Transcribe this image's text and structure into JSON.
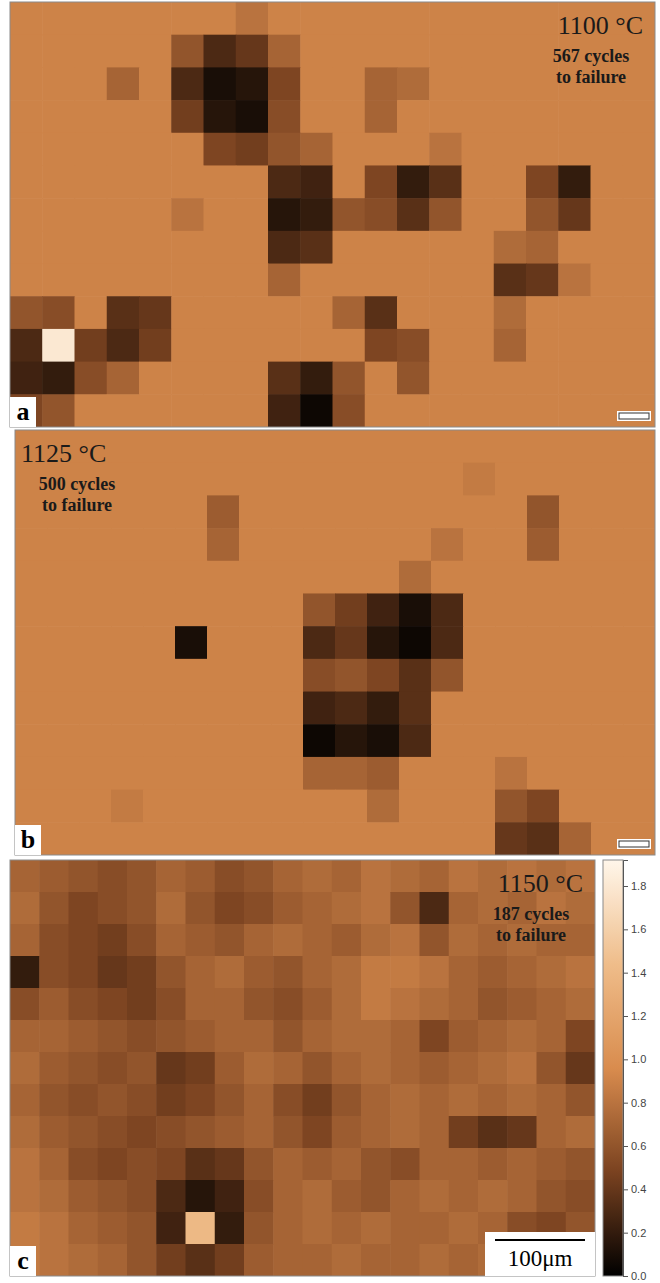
{
  "chart_data": [
    {
      "type": "heatmap",
      "panel_label": "a",
      "title": "1100 °C",
      "annotation": "567 cycles to failure",
      "cells": [
        [
          0.9,
          0.9,
          0.9,
          0.9,
          0.9,
          0.9,
          0.9,
          0.8,
          0.9,
          0.9,
          0.9,
          0.9,
          0.9,
          0.9,
          0.9,
          0.9,
          0.9,
          0.9,
          0.9,
          0.9
        ],
        [
          0.9,
          0.9,
          0.9,
          0.9,
          0.9,
          0.6,
          0.3,
          0.4,
          0.7,
          0.9,
          0.9,
          0.9,
          0.9,
          0.9,
          0.9,
          0.9,
          0.9,
          0.9,
          0.9,
          0.9
        ],
        [
          0.9,
          0.9,
          0.9,
          0.7,
          0.9,
          0.3,
          0.1,
          0.15,
          0.5,
          0.9,
          0.9,
          0.7,
          0.75,
          0.9,
          0.9,
          0.9,
          0.9,
          0.9,
          0.9,
          0.9
        ],
        [
          0.9,
          0.9,
          0.9,
          0.9,
          0.9,
          0.45,
          0.15,
          0.1,
          0.55,
          0.9,
          0.9,
          0.7,
          0.9,
          0.9,
          0.9,
          0.9,
          0.9,
          0.9,
          0.9,
          0.9
        ],
        [
          0.9,
          0.9,
          0.9,
          0.9,
          0.9,
          0.9,
          0.5,
          0.45,
          0.6,
          0.7,
          0.9,
          0.9,
          0.9,
          0.8,
          0.9,
          0.9,
          0.9,
          0.9,
          0.9,
          0.9
        ],
        [
          0.9,
          0.9,
          0.9,
          0.9,
          0.9,
          0.9,
          0.9,
          0.9,
          0.3,
          0.25,
          0.9,
          0.5,
          0.2,
          0.35,
          0.9,
          0.9,
          0.5,
          0.2,
          0.9,
          0.9
        ],
        [
          0.9,
          0.9,
          0.9,
          0.9,
          0.9,
          0.8,
          0.9,
          0.9,
          0.15,
          0.2,
          0.6,
          0.55,
          0.35,
          0.6,
          0.9,
          0.9,
          0.6,
          0.4,
          0.9,
          0.9
        ],
        [
          0.9,
          0.9,
          0.9,
          0.9,
          0.9,
          0.9,
          0.9,
          0.9,
          0.3,
          0.35,
          0.9,
          0.9,
          0.9,
          0.9,
          0.9,
          0.75,
          0.7,
          0.9,
          0.9,
          0.9
        ],
        [
          0.9,
          0.9,
          0.9,
          0.9,
          0.9,
          0.9,
          0.9,
          0.9,
          0.7,
          0.9,
          0.9,
          0.9,
          0.9,
          0.9,
          0.9,
          0.35,
          0.4,
          0.8,
          0.9,
          0.9
        ],
        [
          0.6,
          0.55,
          0.9,
          0.35,
          0.4,
          0.9,
          0.9,
          0.9,
          0.9,
          0.9,
          0.7,
          0.35,
          0.9,
          0.9,
          0.9,
          0.75,
          0.9,
          0.9,
          0.9,
          0.9
        ],
        [
          0.3,
          1.8,
          0.45,
          0.3,
          0.45,
          0.9,
          0.9,
          0.9,
          0.9,
          0.9,
          0.9,
          0.5,
          0.55,
          0.9,
          0.9,
          0.7,
          0.9,
          0.9,
          0.9,
          0.9
        ],
        [
          0.25,
          0.2,
          0.55,
          0.7,
          0.9,
          0.9,
          0.9,
          0.9,
          0.35,
          0.2,
          0.6,
          0.9,
          0.6,
          0.9,
          0.9,
          0.9,
          0.9,
          0.9,
          0.9,
          0.9
        ],
        [
          0.5,
          0.6,
          0.9,
          0.9,
          0.9,
          0.9,
          0.9,
          0.9,
          0.25,
          0.05,
          0.55,
          0.9,
          0.9,
          0.9,
          0.9,
          0.9,
          0.9,
          0.9,
          0.9,
          0.9
        ]
      ]
    },
    {
      "type": "heatmap",
      "panel_label": "b",
      "title": "1125 °C",
      "annotation": "500 cycles to failure",
      "cells": [
        [
          0.9,
          0.9,
          0.9,
          0.9,
          0.9,
          0.9,
          0.9,
          0.9,
          0.9,
          0.9,
          0.9,
          0.9,
          0.9,
          0.9,
          0.9,
          0.9,
          0.9,
          0.9,
          0.9,
          0.9
        ],
        [
          0.9,
          0.9,
          0.9,
          0.9,
          0.9,
          0.9,
          0.9,
          0.9,
          0.9,
          0.9,
          0.9,
          0.9,
          0.9,
          0.9,
          0.85,
          0.9,
          0.9,
          0.9,
          0.9,
          0.9
        ],
        [
          0.9,
          0.9,
          0.9,
          0.9,
          0.9,
          0.9,
          0.65,
          0.9,
          0.9,
          0.9,
          0.9,
          0.9,
          0.9,
          0.9,
          0.9,
          0.9,
          0.6,
          0.9,
          0.9,
          0.9
        ],
        [
          0.9,
          0.9,
          0.9,
          0.9,
          0.9,
          0.9,
          0.7,
          0.9,
          0.9,
          0.9,
          0.9,
          0.9,
          0.9,
          0.8,
          0.9,
          0.9,
          0.65,
          0.9,
          0.9,
          0.9
        ],
        [
          0.9,
          0.9,
          0.9,
          0.9,
          0.9,
          0.9,
          0.9,
          0.9,
          0.9,
          0.9,
          0.9,
          0.9,
          0.75,
          0.9,
          0.9,
          0.9,
          0.9,
          0.9,
          0.9,
          0.9
        ],
        [
          0.9,
          0.9,
          0.9,
          0.9,
          0.9,
          0.9,
          0.9,
          0.9,
          0.9,
          0.6,
          0.45,
          0.25,
          0.1,
          0.3,
          0.9,
          0.9,
          0.9,
          0.9,
          0.9,
          0.9
        ],
        [
          0.9,
          0.9,
          0.9,
          0.9,
          0.9,
          0.1,
          0.9,
          0.9,
          0.9,
          0.3,
          0.4,
          0.15,
          0.05,
          0.3,
          0.9,
          0.9,
          0.9,
          0.9,
          0.9,
          0.9
        ],
        [
          0.9,
          0.9,
          0.9,
          0.9,
          0.9,
          0.9,
          0.9,
          0.9,
          0.9,
          0.55,
          0.6,
          0.5,
          0.35,
          0.6,
          0.9,
          0.9,
          0.9,
          0.9,
          0.9,
          0.9
        ],
        [
          0.9,
          0.9,
          0.9,
          0.9,
          0.9,
          0.9,
          0.9,
          0.9,
          0.9,
          0.25,
          0.3,
          0.2,
          0.35,
          0.9,
          0.9,
          0.9,
          0.9,
          0.9,
          0.9,
          0.9
        ],
        [
          0.9,
          0.9,
          0.9,
          0.9,
          0.9,
          0.9,
          0.9,
          0.9,
          0.9,
          0.05,
          0.15,
          0.1,
          0.3,
          0.9,
          0.9,
          0.9,
          0.9,
          0.9,
          0.9,
          0.9
        ],
        [
          0.9,
          0.9,
          0.9,
          0.9,
          0.9,
          0.9,
          0.9,
          0.9,
          0.9,
          0.7,
          0.7,
          0.65,
          0.9,
          0.9,
          0.9,
          0.8,
          0.9,
          0.9,
          0.9,
          0.9
        ],
        [
          0.9,
          0.9,
          0.9,
          0.85,
          0.9,
          0.9,
          0.9,
          0.9,
          0.9,
          0.9,
          0.9,
          0.75,
          0.9,
          0.9,
          0.9,
          0.6,
          0.5,
          0.9,
          0.9,
          0.9
        ],
        [
          0.9,
          0.9,
          0.9,
          0.9,
          0.9,
          0.9,
          0.9,
          0.9,
          0.9,
          0.9,
          0.9,
          0.9,
          0.9,
          0.9,
          0.9,
          0.4,
          0.35,
          0.7,
          0.9,
          0.9
        ]
      ]
    },
    {
      "type": "heatmap",
      "panel_label": "c",
      "title": "1150 °C",
      "annotation": "187 cycles to failure",
      "scale_bar": "100μm",
      "colorbar_range": [
        0,
        1.92
      ],
      "colorbar_ticks": [
        {
          "value": 0,
          "label": "0.0"
        },
        0.2,
        0.4,
        0.6,
        0.8,
        {
          "value": 1,
          "label": "1.0"
        },
        1.2,
        1.4,
        1.6,
        1.8
      ],
      "cells": [
        [
          0.7,
          0.65,
          0.6,
          0.55,
          0.6,
          0.7,
          0.65,
          0.55,
          0.6,
          0.7,
          0.75,
          0.7,
          0.8,
          0.75,
          0.7,
          0.8,
          0.75,
          0.8,
          0.75,
          0.8
        ],
        [
          0.75,
          0.6,
          0.5,
          0.55,
          0.6,
          0.75,
          0.6,
          0.5,
          0.55,
          0.65,
          0.7,
          0.75,
          0.8,
          0.6,
          0.3,
          0.7,
          0.75,
          0.7,
          0.8,
          0.75
        ],
        [
          0.7,
          0.55,
          0.5,
          0.45,
          0.55,
          0.7,
          0.65,
          0.6,
          0.7,
          0.75,
          0.7,
          0.65,
          0.75,
          0.8,
          0.6,
          0.75,
          0.7,
          0.75,
          0.7,
          0.7
        ],
        [
          0.2,
          0.55,
          0.5,
          0.4,
          0.45,
          0.6,
          0.7,
          0.75,
          0.65,
          0.6,
          0.7,
          0.75,
          0.85,
          0.85,
          0.8,
          0.7,
          0.65,
          0.7,
          0.75,
          0.8
        ],
        [
          0.55,
          0.65,
          0.55,
          0.5,
          0.45,
          0.55,
          0.7,
          0.7,
          0.6,
          0.55,
          0.65,
          0.75,
          0.85,
          0.8,
          0.75,
          0.7,
          0.6,
          0.65,
          0.7,
          0.75
        ],
        [
          0.7,
          0.7,
          0.65,
          0.6,
          0.55,
          0.6,
          0.65,
          0.7,
          0.7,
          0.6,
          0.7,
          0.75,
          0.75,
          0.7,
          0.5,
          0.65,
          0.7,
          0.75,
          0.7,
          0.5
        ],
        [
          0.75,
          0.65,
          0.6,
          0.55,
          0.6,
          0.4,
          0.45,
          0.65,
          0.75,
          0.7,
          0.6,
          0.7,
          0.75,
          0.7,
          0.65,
          0.7,
          0.75,
          0.8,
          0.6,
          0.4
        ],
        [
          0.7,
          0.6,
          0.55,
          0.6,
          0.55,
          0.45,
          0.5,
          0.6,
          0.7,
          0.55,
          0.45,
          0.6,
          0.7,
          0.75,
          0.7,
          0.75,
          0.7,
          0.75,
          0.7,
          0.6
        ],
        [
          0.75,
          0.65,
          0.6,
          0.55,
          0.5,
          0.55,
          0.6,
          0.65,
          0.7,
          0.6,
          0.5,
          0.65,
          0.7,
          0.75,
          0.7,
          0.45,
          0.35,
          0.4,
          0.7,
          0.75
        ],
        [
          0.8,
          0.7,
          0.55,
          0.5,
          0.55,
          0.5,
          0.35,
          0.4,
          0.6,
          0.7,
          0.65,
          0.7,
          0.6,
          0.55,
          0.7,
          0.7,
          0.65,
          0.7,
          0.65,
          0.6
        ],
        [
          0.8,
          0.75,
          0.65,
          0.6,
          0.55,
          0.3,
          0.15,
          0.25,
          0.55,
          0.7,
          0.75,
          0.65,
          0.6,
          0.7,
          0.75,
          0.7,
          0.75,
          0.7,
          0.6,
          0.55
        ],
        [
          0.85,
          0.8,
          0.7,
          0.65,
          0.6,
          0.25,
          1.4,
          0.2,
          0.6,
          0.7,
          0.75,
          0.7,
          0.75,
          0.7,
          0.7,
          0.75,
          0.7,
          0.55,
          0.5,
          0.6
        ],
        [
          0.85,
          0.8,
          0.75,
          0.7,
          0.6,
          0.45,
          0.35,
          0.45,
          0.65,
          0.7,
          0.7,
          0.75,
          0.7,
          0.7,
          0.75,
          0.7,
          0.75,
          0.65,
          0.6,
          0.65
        ]
      ]
    }
  ]
}
